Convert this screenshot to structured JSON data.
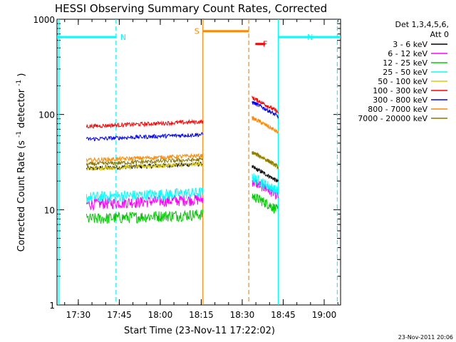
{
  "chart_data": {
    "type": "line",
    "title": "HESSI Observing Summary Count Rates, Corrected",
    "xlabel": "Start Time (23-Nov-11 17:22:02)",
    "ylabel": "Corrected Count Rate (s⁻¹ detector⁻¹)",
    "ylabel_base": "Corrected Count Rate (s",
    "ylabel_mid": " detector",
    "ylabel_end": ")",
    "ylabel_sup1": "-1",
    "ylabel_sup2": "-1",
    "y_scale": "log",
    "ylim": [
      1,
      1000
    ],
    "xlim_minutes": [
      17.37,
      19.1
    ],
    "x_ticks": [
      {
        "label": "17:30",
        "value": 17.5
      },
      {
        "label": "17:45",
        "value": 17.75
      },
      {
        "label": "18:00",
        "value": 18.0
      },
      {
        "label": "18:15",
        "value": 18.25
      },
      {
        "label": "18:30",
        "value": 18.5
      },
      {
        "label": "18:45",
        "value": 18.75
      },
      {
        "label": "19:00",
        "value": 19.0
      }
    ],
    "y_ticks": [
      {
        "label": "1",
        "value": 1
      },
      {
        "label": "10",
        "value": 10
      },
      {
        "label": "100",
        "value": 100
      },
      {
        "label": "1000",
        "value": 1000
      }
    ],
    "legend": {
      "header1": "Det 1,3,4,5,6,",
      "header2": "Att 0",
      "placement": "right"
    },
    "series": [
      {
        "name": "3 - 6 keV",
        "color": "#000000",
        "seg1": 27,
        "seg2": 28
      },
      {
        "name": "6 - 12 keV",
        "color": "#ff00ff",
        "seg1": 11.5,
        "seg2": 20
      },
      {
        "name": "12 - 25 keV",
        "color": "#00cc00",
        "seg1": 8,
        "seg2": 14
      },
      {
        "name": "25 - 50 keV",
        "color": "#00ffff",
        "seg1": 13.5,
        "seg2": 22
      },
      {
        "name": "50 - 100 keV",
        "color": "#ddcc00",
        "seg1": 27,
        "seg2": 40
      },
      {
        "name": "100 - 300 keV",
        "color": "#ff0000",
        "seg1": 75,
        "seg2": 150
      },
      {
        "name": "300 - 800 keV",
        "color": "#0000ff",
        "seg1": 55,
        "seg2": 135
      },
      {
        "name": "800 - 7000 keV",
        "color": "#ff8800",
        "seg1": 33,
        "seg2": 92
      },
      {
        "name": "7000 - 20000 keV",
        "color": "#887700",
        "seg1": 30,
        "seg2": 40
      }
    ],
    "data_intervals": [
      [
        17.55,
        18.26
      ],
      [
        18.56,
        18.72
      ]
    ],
    "markers": [
      {
        "label": "N",
        "color": "#00ffff",
        "x": 17.73,
        "y": 650,
        "start": 17.37,
        "end": 17.73
      },
      {
        "label": "N",
        "color": "#00ffff",
        "x": 18.87,
        "y": 650,
        "start": 18.72,
        "end": 19.1
      },
      {
        "label": "S",
        "color": "#ff8800",
        "x": 18.26,
        "y": 750,
        "start": 18.26,
        "end": 18.54
      },
      {
        "label": "F",
        "color": "#ff0000",
        "x": 18.6,
        "y": 550,
        "start": 18.58,
        "end": 18.64
      }
    ],
    "vlines": [
      {
        "x": 17.38,
        "color": "#00ffff",
        "style": "solid"
      },
      {
        "x": 17.73,
        "color": "#00ffff",
        "style": "dashed"
      },
      {
        "x": 18.26,
        "color": "#ff8800",
        "style": "solid"
      },
      {
        "x": 18.54,
        "color": "#ff8800",
        "style": "dashed"
      },
      {
        "x": 18.72,
        "color": "#00ffff",
        "style": "solid"
      },
      {
        "x": 19.08,
        "color": "#00ffff",
        "style": "dashed"
      }
    ]
  },
  "footer": {
    "timestamp": "23-Nov-2011 20:06"
  }
}
